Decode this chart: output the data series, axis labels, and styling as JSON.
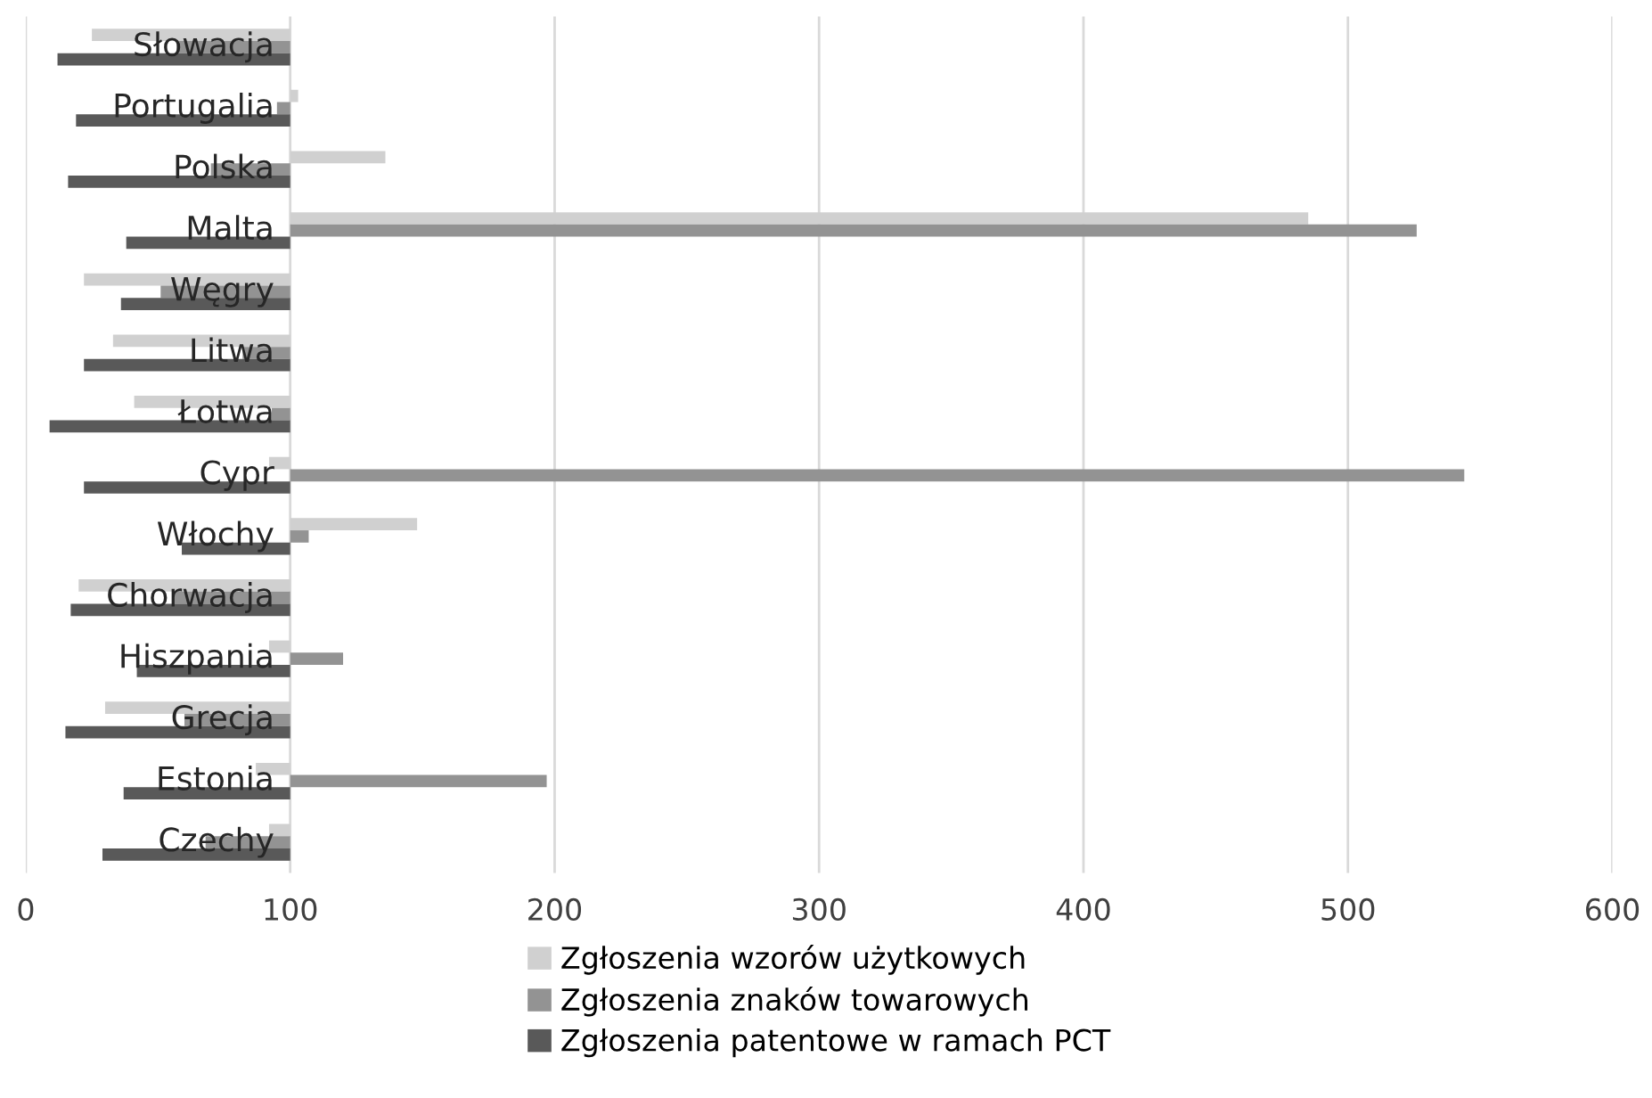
{
  "chart_data": {
    "type": "bar",
    "orientation": "horizontal",
    "categories": [
      "Słowacja",
      "Portugalia",
      "Polska",
      "Malta",
      "Węgry",
      "Litwa",
      "Łotwa",
      "Cypr",
      "Włochy",
      "Chorwacja",
      "Hiszpania",
      "Grecja",
      "Estonia",
      "Czechy"
    ],
    "series": [
      {
        "name": "Zgłoszenia wzorów użytkowych",
        "color": "#d0d0d0",
        "base": [
          100,
          100,
          100,
          100,
          100,
          100,
          100,
          100,
          100,
          100,
          100,
          100,
          100,
          100
        ],
        "values": [
          -75,
          3,
          36,
          385,
          -78,
          -67,
          -59,
          -8,
          48,
          -80,
          -8,
          -70,
          -13,
          -8
        ]
      },
      {
        "name": "Zgłoszenia znaków towarowych",
        "color": "#939393",
        "base": [
          100,
          100,
          100,
          100,
          100,
          100,
          100,
          100,
          100,
          100,
          100,
          100,
          100,
          100
        ],
        "values": [
          -43,
          -5,
          -30,
          426,
          -49,
          -18,
          -7,
          444,
          7,
          -44,
          20,
          -40,
          97,
          -32
        ]
      },
      {
        "name": "Zgłoszenia patentowe w ramach PCT",
        "color": "#595959",
        "base": [
          100,
          100,
          100,
          100,
          100,
          100,
          100,
          100,
          100,
          100,
          100,
          100,
          100,
          100
        ],
        "values": [
          -88,
          -81,
          -84,
          -62,
          -64,
          -78,
          -91,
          -78,
          -41,
          -83,
          -58,
          -85,
          -63,
          -71
        ]
      }
    ],
    "xlim": [
      0,
      600
    ],
    "xticks": [
      0,
      100,
      200,
      300,
      400,
      500,
      600
    ],
    "grid": "x",
    "legend": "bottom"
  }
}
